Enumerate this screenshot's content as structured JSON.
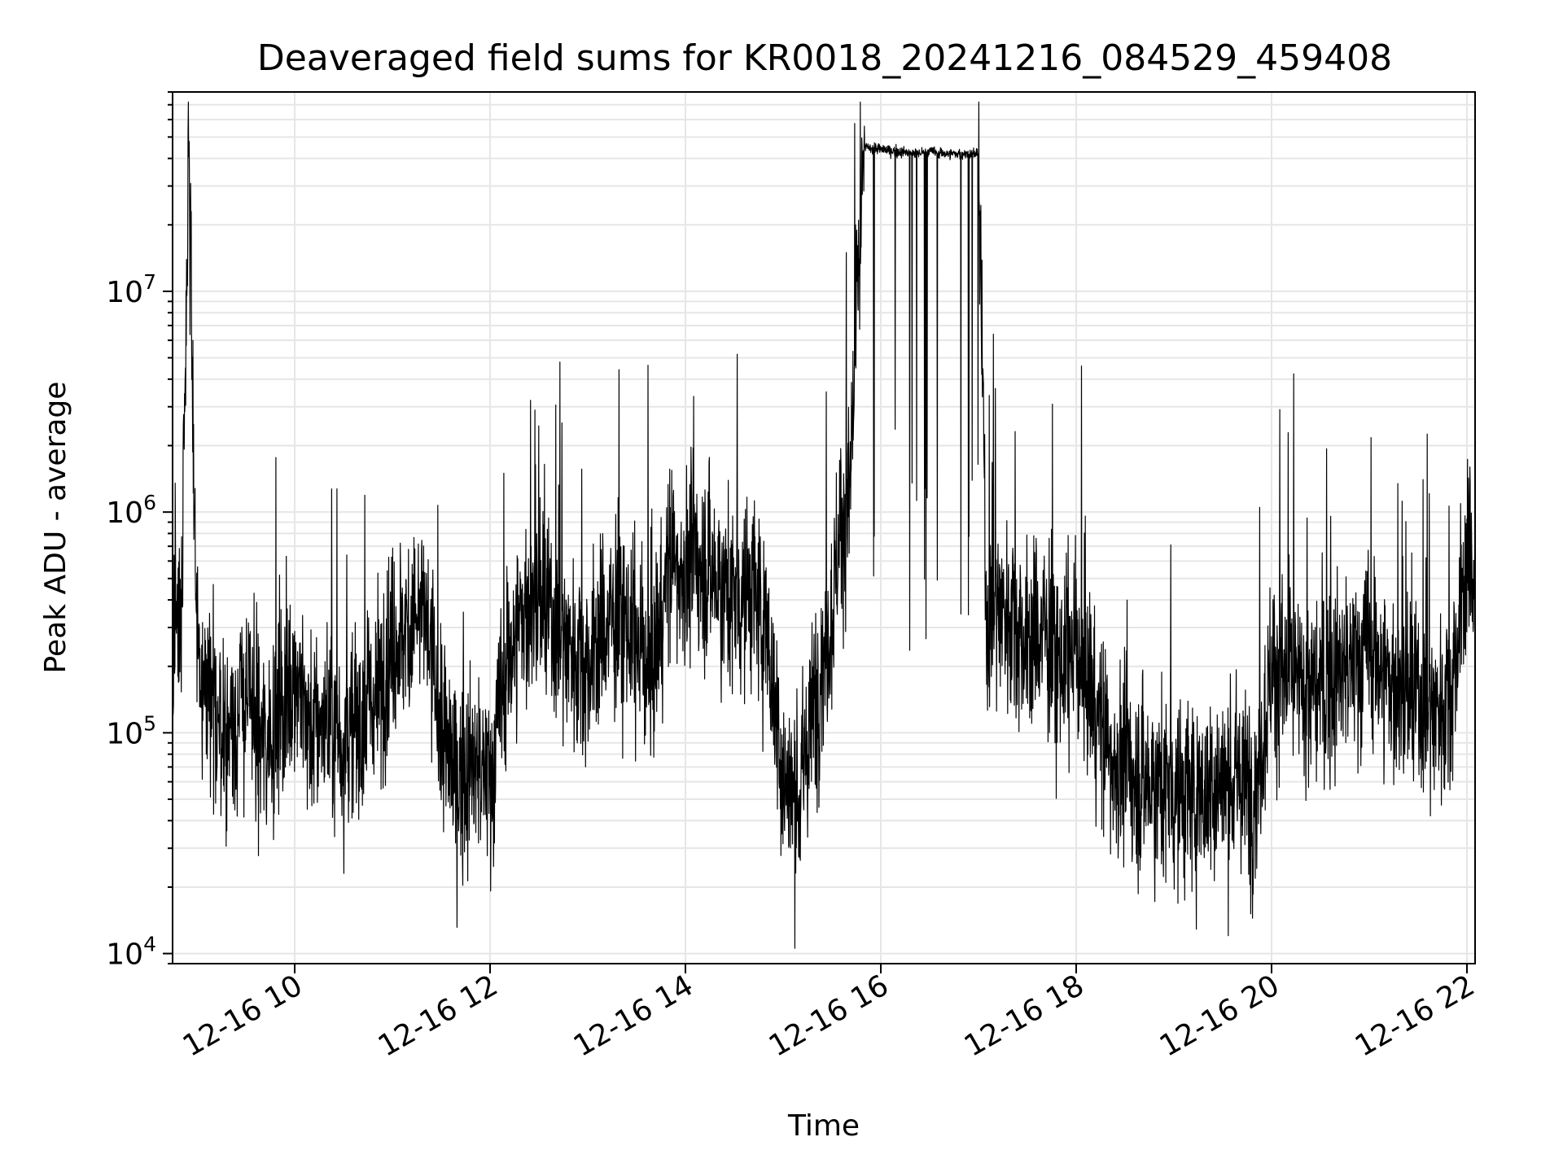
{
  "chart_data": {
    "type": "line",
    "title": "Deaveraged field sums for KR0018_20241216_084529_459408",
    "xlabel": "Time",
    "ylabel": "Peak ADU - average",
    "y_scale": "log",
    "grid": true,
    "line_color": "#000000",
    "xlim": [
      "2024-12-16T08:45",
      "2024-12-16T22:05"
    ],
    "ylim": [
      9000,
      80000000
    ],
    "x_ticks": [
      "12-16 10",
      "12-16 12",
      "12-16 14",
      "12-16 16",
      "12-16 18",
      "12-16 20",
      "12-16 22"
    ],
    "y_ticks": [
      {
        "base": "10",
        "exp": "4",
        "value": 10000
      },
      {
        "base": "10",
        "exp": "5",
        "value": 100000
      },
      {
        "base": "10",
        "exp": "6",
        "value": 1000000
      },
      {
        "base": "10",
        "exp": "7",
        "value": 10000000
      }
    ],
    "series": [
      {
        "x": [
          "08:45",
          "08:50",
          "08:55",
          "09:00",
          "09:05",
          "09:10",
          "09:20",
          "09:30",
          "09:40",
          "09:50",
          "10:00",
          "10:10",
          "10:20",
          "10:30",
          "10:40",
          "10:50",
          "11:00",
          "11:10",
          "11:20",
          "11:30",
          "11:40",
          "11:50",
          "12:00",
          "12:10",
          "12:20",
          "12:30",
          "12:40",
          "12:50",
          "13:00",
          "13:10",
          "13:20",
          "13:30",
          "13:40",
          "13:50",
          "14:00",
          "14:10",
          "14:20",
          "14:30",
          "14:40",
          "14:50",
          "15:00",
          "15:10",
          "15:20",
          "15:30",
          "15:35",
          "15:40",
          "15:50",
          "16:00",
          "16:10",
          "16:20",
          "16:30",
          "16:40",
          "16:50",
          "17:00",
          "17:05",
          "17:10",
          "17:20",
          "17:30",
          "17:40",
          "17:50",
          "18:00",
          "18:10",
          "18:20",
          "18:30",
          "18:40",
          "18:50",
          "19:00",
          "19:10",
          "19:20",
          "19:30",
          "19:40",
          "19:50",
          "20:00",
          "20:10",
          "20:20",
          "20:30",
          "20:40",
          "20:50",
          "21:00",
          "21:10",
          "21:20",
          "21:30",
          "21:40",
          "21:50",
          "22:00",
          "22:05"
        ],
        "y": [
          400000,
          300000,
          50000000,
          200000,
          150000,
          120000,
          100000,
          150000,
          90000,
          120000,
          200000,
          100000,
          120000,
          90000,
          110000,
          150000,
          250000,
          300000,
          350000,
          100000,
          60000,
          70000,
          60000,
          200000,
          350000,
          400000,
          300000,
          250000,
          200000,
          300000,
          350000,
          250000,
          200000,
          600000,
          550000,
          600000,
          500000,
          400000,
          450000,
          300000,
          60000,
          50000,
          150000,
          350000,
          900000,
          1000000,
          45000000,
          44000000,
          43000000,
          42000000,
          43000000,
          42000000,
          42000000,
          42000000,
          300000,
          400000,
          350000,
          250000,
          300000,
          200000,
          250000,
          150000,
          80000,
          70000,
          60000,
          60000,
          55000,
          50000,
          55000,
          60000,
          60000,
          55000,
          200000,
          180000,
          150000,
          160000,
          180000,
          200000,
          250000,
          180000,
          150000,
          140000,
          130000,
          150000,
          600000,
          550000
        ]
      }
    ]
  }
}
